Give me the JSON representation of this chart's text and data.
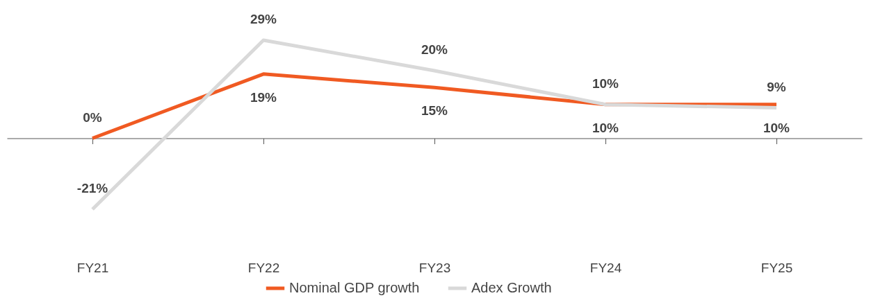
{
  "chart_data": {
    "type": "line",
    "categories": [
      "FY21",
      "FY22",
      "FY23",
      "FY24",
      "FY25"
    ],
    "series": [
      {
        "name": "Nominal GDP growth",
        "color": "#f05a22",
        "values": [
          0,
          19,
          15,
          10,
          10
        ],
        "value_labels": [
          "0%",
          "19%",
          "15%",
          "10%",
          "10%"
        ]
      },
      {
        "name": "Adex Growth",
        "color": "#d9d9d9",
        "values": [
          -21,
          29,
          20,
          10,
          9
        ],
        "value_labels": [
          "-21%",
          "29%",
          "20%",
          "10%",
          "9%"
        ]
      }
    ],
    "legend": "bottom",
    "grid": false,
    "marker": "none",
    "line_style": "solid"
  }
}
